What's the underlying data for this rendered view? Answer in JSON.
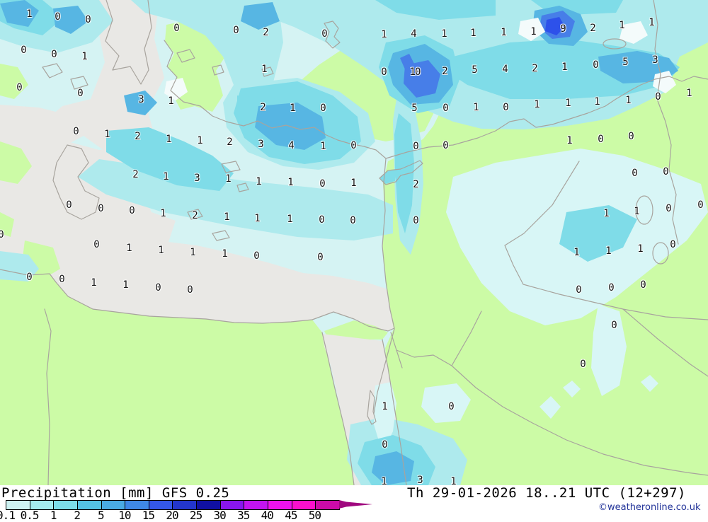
{
  "header": {
    "title": "Precipitation [mm] GFS 0.25"
  },
  "footer": {
    "datetime": "Th 29-01-2026 18..21 UTC (12+297)",
    "copyright": "©weatheronline.co.uk",
    "copyright_color": "#223399"
  },
  "legend": {
    "unit": "mm",
    "values": [
      "0.1",
      "0.5",
      "1",
      "2",
      "5",
      "10",
      "15",
      "20",
      "25",
      "30",
      "35",
      "40",
      "45",
      "50"
    ],
    "colors": [
      "#cdf2f2",
      "#a4ebee",
      "#7cdde9",
      "#55c3e4",
      "#4aabe4",
      "#3f88e6",
      "#3457e8",
      "#2336cc",
      "#1010a2",
      "#8816ee",
      "#c214f0",
      "#ee12ee",
      "#fb10cc",
      "#cb0ba8"
    ],
    "arrow_color": "#a0087f"
  },
  "map_colors": {
    "sea_light_precip": "#d5f3f3",
    "no_precip_gray": "#e9e8e5",
    "land_green": "#ccfba6",
    "coastline": "#a8a49e",
    "precip_light_cyan": "#aeeaed",
    "precip_cyan": "#7fdce8",
    "precip_medium_blue": "#57b6e3",
    "precip_blue": "#477ee8",
    "precip_deep_blue": "#2d51ea"
  },
  "map": {
    "values": [
      [
        41,
        21,
        "1"
      ],
      [
        81,
        25,
        "0"
      ],
      [
        124,
        29,
        "0"
      ],
      [
        249,
        41,
        "0"
      ],
      [
        333,
        44,
        "0"
      ],
      [
        375,
        47,
        "2"
      ],
      [
        458,
        49,
        "0"
      ],
      [
        542,
        50,
        "1"
      ],
      [
        584,
        49,
        "4"
      ],
      [
        627,
        49,
        "1"
      ],
      [
        668,
        48,
        "1"
      ],
      [
        711,
        47,
        "1"
      ],
      [
        753,
        46,
        "1"
      ],
      [
        795,
        42,
        "9"
      ],
      [
        837,
        41,
        "2"
      ],
      [
        878,
        37,
        "1"
      ],
      [
        920,
        33,
        "1"
      ],
      [
        33,
        72,
        "0"
      ],
      [
        76,
        78,
        "0"
      ],
      [
        119,
        81,
        "1"
      ],
      [
        373,
        99,
        "1"
      ],
      [
        542,
        103,
        "0"
      ],
      [
        586,
        103,
        "10"
      ],
      [
        628,
        102,
        "2"
      ],
      [
        670,
        100,
        "5"
      ],
      [
        713,
        99,
        "4"
      ],
      [
        755,
        98,
        "2"
      ],
      [
        797,
        96,
        "1"
      ],
      [
        841,
        93,
        "0"
      ],
      [
        883,
        89,
        "5"
      ],
      [
        925,
        86,
        "3"
      ],
      [
        27,
        125,
        "0"
      ],
      [
        113,
        133,
        "0"
      ],
      [
        199,
        142,
        "3"
      ],
      [
        241,
        144,
        "1"
      ],
      [
        371,
        153,
        "2"
      ],
      [
        413,
        154,
        "1"
      ],
      [
        456,
        154,
        "0"
      ],
      [
        585,
        154,
        "5"
      ],
      [
        629,
        154,
        "0"
      ],
      [
        672,
        153,
        "1"
      ],
      [
        714,
        153,
        "0"
      ],
      [
        758,
        149,
        "1"
      ],
      [
        802,
        147,
        "1"
      ],
      [
        843,
        145,
        "1"
      ],
      [
        887,
        143,
        "1"
      ],
      [
        929,
        138,
        "0"
      ],
      [
        973,
        133,
        "1"
      ],
      [
        107,
        187,
        "0"
      ],
      [
        151,
        191,
        "1"
      ],
      [
        194,
        194,
        "2"
      ],
      [
        238,
        198,
        "1"
      ],
      [
        282,
        200,
        "1"
      ],
      [
        324,
        202,
        "2"
      ],
      [
        368,
        205,
        "3"
      ],
      [
        411,
        207,
        "4"
      ],
      [
        456,
        208,
        "1"
      ],
      [
        499,
        207,
        "0"
      ],
      [
        587,
        208,
        "0"
      ],
      [
        629,
        207,
        "0"
      ],
      [
        804,
        200,
        "1"
      ],
      [
        848,
        198,
        "0"
      ],
      [
        891,
        194,
        "0"
      ],
      [
        191,
        248,
        "2"
      ],
      [
        234,
        251,
        "1"
      ],
      [
        278,
        253,
        "3"
      ],
      [
        322,
        254,
        "1"
      ],
      [
        365,
        258,
        "1"
      ],
      [
        410,
        259,
        "1"
      ],
      [
        455,
        261,
        "0"
      ],
      [
        499,
        260,
        "1"
      ],
      [
        587,
        262,
        "2"
      ],
      [
        896,
        246,
        "0"
      ],
      [
        940,
        244,
        "0"
      ],
      [
        97,
        291,
        "0"
      ],
      [
        142,
        296,
        "0"
      ],
      [
        186,
        299,
        "0"
      ],
      [
        230,
        303,
        "1"
      ],
      [
        275,
        306,
        "2"
      ],
      [
        320,
        308,
        "1"
      ],
      [
        363,
        310,
        "1"
      ],
      [
        409,
        311,
        "1"
      ],
      [
        454,
        312,
        "0"
      ],
      [
        498,
        313,
        "0"
      ],
      [
        587,
        313,
        "0"
      ],
      [
        856,
        303,
        "1"
      ],
      [
        899,
        300,
        "1"
      ],
      [
        944,
        296,
        "0"
      ],
      [
        989,
        291,
        "0"
      ],
      [
        1,
        333,
        "0"
      ],
      [
        136,
        347,
        "0"
      ],
      [
        182,
        352,
        "1"
      ],
      [
        227,
        355,
        "1"
      ],
      [
        272,
        358,
        "1"
      ],
      [
        317,
        360,
        "1"
      ],
      [
        362,
        363,
        "0"
      ],
      [
        452,
        365,
        "0"
      ],
      [
        814,
        358,
        "1"
      ],
      [
        859,
        356,
        "1"
      ],
      [
        904,
        353,
        "1"
      ],
      [
        950,
        347,
        "0"
      ],
      [
        41,
        393,
        "0"
      ],
      [
        87,
        396,
        "0"
      ],
      [
        132,
        401,
        "1"
      ],
      [
        177,
        404,
        "1"
      ],
      [
        223,
        408,
        "0"
      ],
      [
        268,
        411,
        "0"
      ],
      [
        817,
        411,
        "0"
      ],
      [
        863,
        408,
        "0"
      ],
      [
        908,
        404,
        "0"
      ],
      [
        867,
        461,
        "0"
      ],
      [
        823,
        516,
        "0"
      ],
      [
        543,
        576,
        "1"
      ],
      [
        637,
        576,
        "0"
      ],
      [
        543,
        630,
        "0"
      ],
      [
        542,
        682,
        "1"
      ],
      [
        593,
        680,
        "3"
      ],
      [
        640,
        682,
        "1"
      ]
    ]
  }
}
